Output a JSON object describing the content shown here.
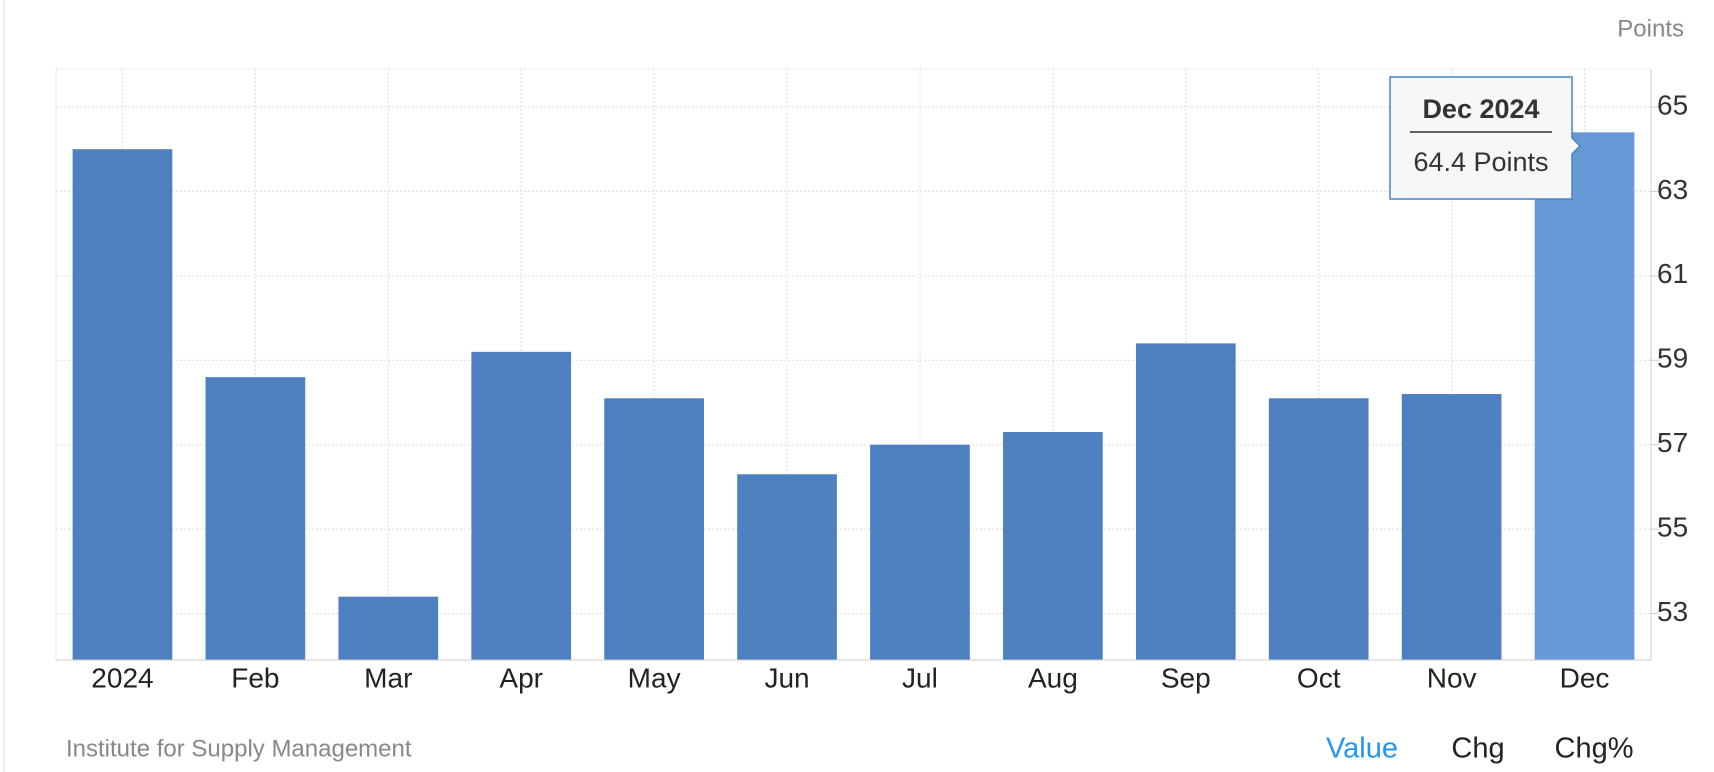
{
  "chart_data": {
    "type": "bar",
    "unit": "Points",
    "categories": [
      "2024",
      "Feb",
      "Mar",
      "Apr",
      "May",
      "Jun",
      "Jul",
      "Aug",
      "Sep",
      "Oct",
      "Nov",
      "Dec"
    ],
    "values": [
      64.0,
      58.6,
      53.4,
      59.2,
      58.1,
      56.3,
      57.0,
      57.3,
      59.4,
      58.1,
      58.2,
      64.4
    ],
    "colors": [
      "#4e80bf",
      "#4e80bf",
      "#4e80bf",
      "#4e80bf",
      "#4e80bf",
      "#4e80bf",
      "#4e80bf",
      "#4e80bf",
      "#4e80bf",
      "#4e80bf",
      "#4e80bf",
      "#6699d6"
    ],
    "ylim": [
      51.9,
      65.9
    ],
    "yticks": [
      53,
      55,
      57,
      59,
      61,
      63,
      65
    ],
    "grid": true,
    "tooltip": {
      "title": "Dec 2024",
      "text": "64.4 Points"
    },
    "source": "Institute for Supply Management",
    "buttons": [
      "Value",
      "Chg",
      "Chg%"
    ],
    "active_button_color": "#2196f3"
  }
}
